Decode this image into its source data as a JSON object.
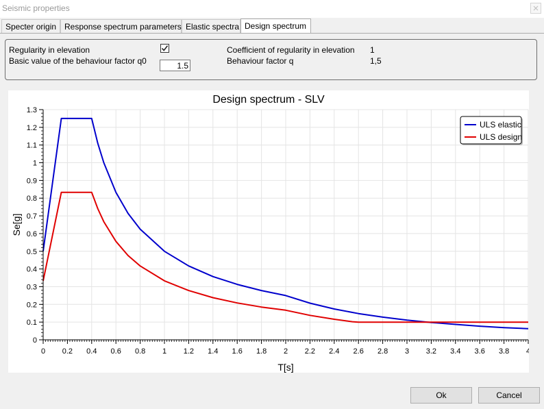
{
  "window": {
    "title": "Seismic properties"
  },
  "tabs": [
    {
      "label": "Specter origin"
    },
    {
      "label": "Response spectrum parameters"
    },
    {
      "label": "Elastic spectra"
    },
    {
      "label": "Design spectrum"
    }
  ],
  "params": {
    "regularity_label": "Regularity in elevation",
    "regularity_checked": true,
    "q0_label": "Basic value of the behaviour factor q0",
    "q0_value": "1.5",
    "coeff_label": "Coefficient of regularity in elevation",
    "coeff_value": "1",
    "q_label": "Behaviour factor q",
    "q_value": "1,5"
  },
  "buttons": {
    "ok": "Ok",
    "cancel": "Cancel"
  },
  "colors": {
    "elastic": "#0000cc",
    "design": "#e00000",
    "grid": "#e4e4e4",
    "axis": "#000000"
  },
  "chart_data": {
    "type": "line",
    "title": "Design spectrum - SLV",
    "xlabel": "T[s]",
    "ylabel": "Se[g]",
    "xlim": [
      0,
      4
    ],
    "ylim": [
      0,
      1.3
    ],
    "x_ticks": [
      "0",
      "0.2",
      "0.4",
      "0.6",
      "0.8",
      "1",
      "1.2",
      "1.4",
      "1.6",
      "1.8",
      "2",
      "2.2",
      "2.4",
      "2.6",
      "2.8",
      "3",
      "3.2",
      "3.4",
      "3.6",
      "3.8",
      "4"
    ],
    "y_ticks": [
      "0",
      "0.1",
      "0.2",
      "0.3",
      "0.4",
      "0.5",
      "0.6",
      "0.7",
      "0.8",
      "0.9",
      "1",
      "1.1",
      "1.2",
      "1.3"
    ],
    "grid": true,
    "legend_position": "top-right",
    "series": [
      {
        "name": "ULS elastic",
        "color": "#0000cc",
        "x": [
          0,
          0.15,
          0.4,
          0.45,
          0.5,
          0.6,
          0.7,
          0.8,
          1.0,
          1.2,
          1.4,
          1.6,
          1.8,
          2.0,
          2.2,
          2.4,
          2.6,
          2.8,
          3.0,
          3.2,
          3.4,
          3.6,
          3.8,
          4.0
        ],
        "y": [
          0.5,
          1.25,
          1.25,
          1.11,
          1.0,
          0.833,
          0.714,
          0.625,
          0.5,
          0.417,
          0.357,
          0.313,
          0.278,
          0.25,
          0.207,
          0.174,
          0.148,
          0.128,
          0.111,
          0.098,
          0.087,
          0.077,
          0.069,
          0.063
        ]
      },
      {
        "name": "ULS design",
        "color": "#e00000",
        "x": [
          0,
          0.15,
          0.4,
          0.45,
          0.5,
          0.6,
          0.7,
          0.8,
          1.0,
          1.2,
          1.4,
          1.6,
          1.8,
          2.0,
          2.2,
          2.4,
          2.55,
          2.6,
          2.8,
          3.0,
          3.2,
          3.4,
          3.6,
          3.8,
          4.0
        ],
        "y": [
          0.333,
          0.833,
          0.833,
          0.741,
          0.667,
          0.556,
          0.476,
          0.417,
          0.333,
          0.278,
          0.238,
          0.208,
          0.185,
          0.167,
          0.138,
          0.116,
          0.102,
          0.1,
          0.1,
          0.1,
          0.1,
          0.1,
          0.1,
          0.1,
          0.1
        ]
      }
    ]
  }
}
